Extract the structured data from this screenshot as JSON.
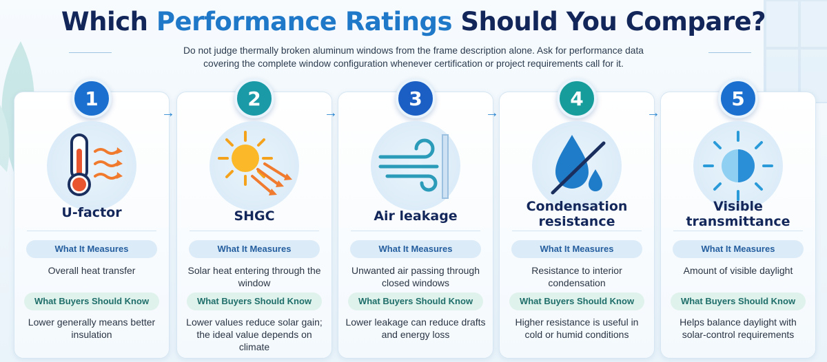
{
  "header": {
    "title_start": "Which ",
    "title_accent": "Performance Ratings",
    "title_end": " Should You Compare?",
    "subtitle": "Do not judge thermally broken aluminum windows from the frame description alone. Ask for performance data covering the complete window configuration whenever certification or project requirements call for it."
  },
  "labels": {
    "measures": "What It Measures",
    "buyers": "What Buyers Should Know"
  },
  "cards": [
    {
      "number": "1",
      "badge_color": "#1a6fcf",
      "icon": "thermometer-heat-icon",
      "name": "U-factor",
      "measures": "Overall heat transfer",
      "buyers": "Lower generally means better insulation"
    },
    {
      "number": "2",
      "badge_color": "#1a9aa6",
      "icon": "sun-rays-icon",
      "name": "SHGC",
      "measures": "Solar heat entering through the window",
      "buyers": "Lower values reduce solar gain; the ideal value depends on climate"
    },
    {
      "number": "3",
      "badge_color": "#1b5fc4",
      "icon": "wind-icon",
      "name": "Air leakage",
      "measures": "Unwanted air passing through closed windows",
      "buyers": "Lower leakage can reduce drafts and energy loss"
    },
    {
      "number": "4",
      "badge_color": "#169c9a",
      "icon": "water-drop-icon",
      "name": "Condensation resistance",
      "measures": "Resistance to interior condensation",
      "buyers": "Higher resistance is useful in cold or humid conditions"
    },
    {
      "number": "5",
      "badge_color": "#1a6fcf",
      "icon": "daylight-sun-icon",
      "name": "Visible transmittance",
      "measures": "Amount of visible daylight",
      "buyers": "Helps balance daylight with solar-control requirements"
    }
  ]
}
